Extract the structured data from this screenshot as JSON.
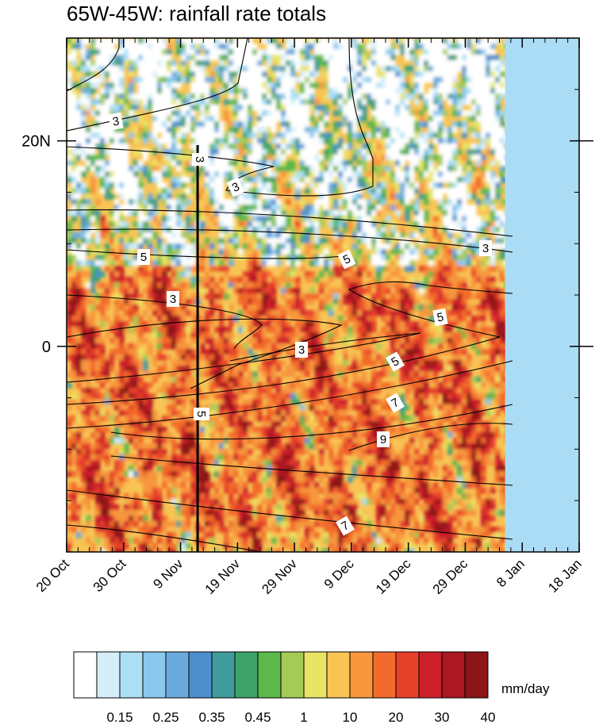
{
  "chart_data": {
    "type": "heatmap",
    "title": "65W-45W: rainfall rate totals",
    "x_axis": {
      "type": "date",
      "range": [
        "20 Oct",
        "18 Jan"
      ],
      "tick_labels": [
        "20 Oct",
        "30 Oct",
        "9 Nov",
        "19 Nov",
        "29 Nov",
        "9 Dec",
        "19 Dec",
        "29 Dec",
        "8 Jan",
        "18 Jan"
      ],
      "minor_tick_interval_days": 2
    },
    "y_axis": {
      "range_deg_lat": [
        -20,
        30
      ],
      "tick_values": [
        20,
        0
      ],
      "tick_labels": [
        "20N",
        "0"
      ],
      "minor_tick_interval_deg": 5
    },
    "data_end": "5 Jan",
    "missing_region_color": "#abdcf5",
    "colorbar": {
      "units": "mm/day",
      "levels": [
        "0.15",
        "0.25",
        "0.35",
        "0.45",
        "1",
        "10",
        "20",
        "30",
        "40"
      ],
      "colors": [
        "#ffffff",
        "#d6eefa",
        "#ace0f7",
        "#8ac9ed",
        "#6aabdd",
        "#4f8ecd",
        "#3f9c9b",
        "#3da368",
        "#5cb84a",
        "#a4cb56",
        "#e9e465",
        "#f8c454",
        "#f7963c",
        "#f26a2c",
        "#e5412a",
        "#cb1f2a",
        "#ab1722",
        "#8b1517"
      ]
    },
    "contours": [
      {
        "label": "3",
        "color": "#000000"
      },
      {
        "label": "5",
        "color": "#000000"
      },
      {
        "label": "7",
        "color": "#000000"
      },
      {
        "label": "9",
        "color": "#000000"
      }
    ],
    "contour_labels": [
      "3",
      "3",
      "3",
      "3",
      "3",
      "3",
      "5",
      "5",
      "5",
      "5",
      "5",
      "7",
      "7",
      "9"
    ],
    "vertical_marker": {
      "date": "12 Nov",
      "style": "thick black line"
    }
  }
}
